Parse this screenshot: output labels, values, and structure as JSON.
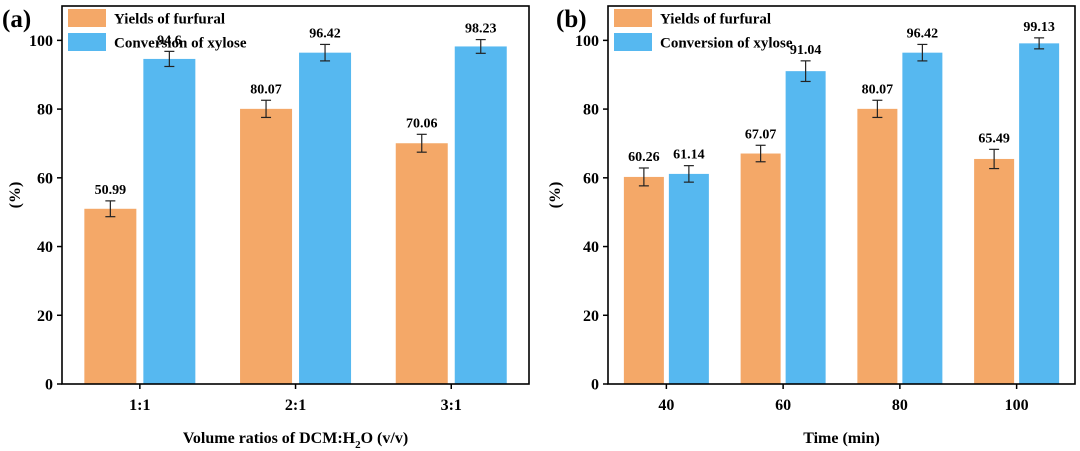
{
  "colors": {
    "yields": "#f4a868",
    "conversion": "#56b8f0",
    "error_bar": "#222222",
    "axis": "#000000"
  },
  "chart_data": [
    {
      "type": "bar",
      "panel": "(a)",
      "title": "",
      "xlabel_main": "Volume ratios of DCM:H",
      "xlabel_sub": "2",
      "xlabel_tail": "O (v/v)",
      "ylabel": "(%)",
      "ylim": [
        0,
        110
      ],
      "yticks": [
        0,
        20,
        40,
        60,
        80,
        100
      ],
      "categories": [
        "1:1",
        "2:1",
        "3:1"
      ],
      "legend_position": "top-left",
      "series": [
        {
          "name": "Yields of furfural",
          "color_key": "yields",
          "values": [
            50.99,
            80.07,
            70.06
          ],
          "labels": [
            "50.99",
            "80.07",
            "70.06"
          ],
          "errors": [
            2.3,
            2.5,
            2.6
          ]
        },
        {
          "name": "Conversion of xylose",
          "color_key": "conversion",
          "values": [
            94.6,
            96.42,
            98.23
          ],
          "labels": [
            "94.6",
            "96.42",
            "98.23"
          ],
          "errors": [
            2.2,
            2.4,
            2.0
          ]
        }
      ]
    },
    {
      "type": "bar",
      "panel": "(b)",
      "title": "",
      "xlabel_main": "Time (min)",
      "xlabel_sub": "",
      "xlabel_tail": "",
      "ylabel": "(%)",
      "ylim": [
        0,
        110
      ],
      "yticks": [
        0,
        20,
        40,
        60,
        80,
        100
      ],
      "categories": [
        "40",
        "60",
        "80",
        "100"
      ],
      "legend_position": "top-left",
      "series": [
        {
          "name": "Yields of furfural",
          "color_key": "yields",
          "values": [
            60.26,
            67.07,
            80.07,
            65.49
          ],
          "labels": [
            "60.26",
            "67.07",
            "80.07",
            "65.49"
          ],
          "errors": [
            2.6,
            2.4,
            2.5,
            2.8
          ]
        },
        {
          "name": "Conversion of xylose",
          "color_key": "conversion",
          "values": [
            61.14,
            91.04,
            96.42,
            99.13
          ],
          "labels": [
            "61.14",
            "91.04",
            "96.42",
            "99.13"
          ],
          "errors": [
            2.4,
            3.0,
            2.4,
            1.6
          ]
        }
      ]
    }
  ]
}
